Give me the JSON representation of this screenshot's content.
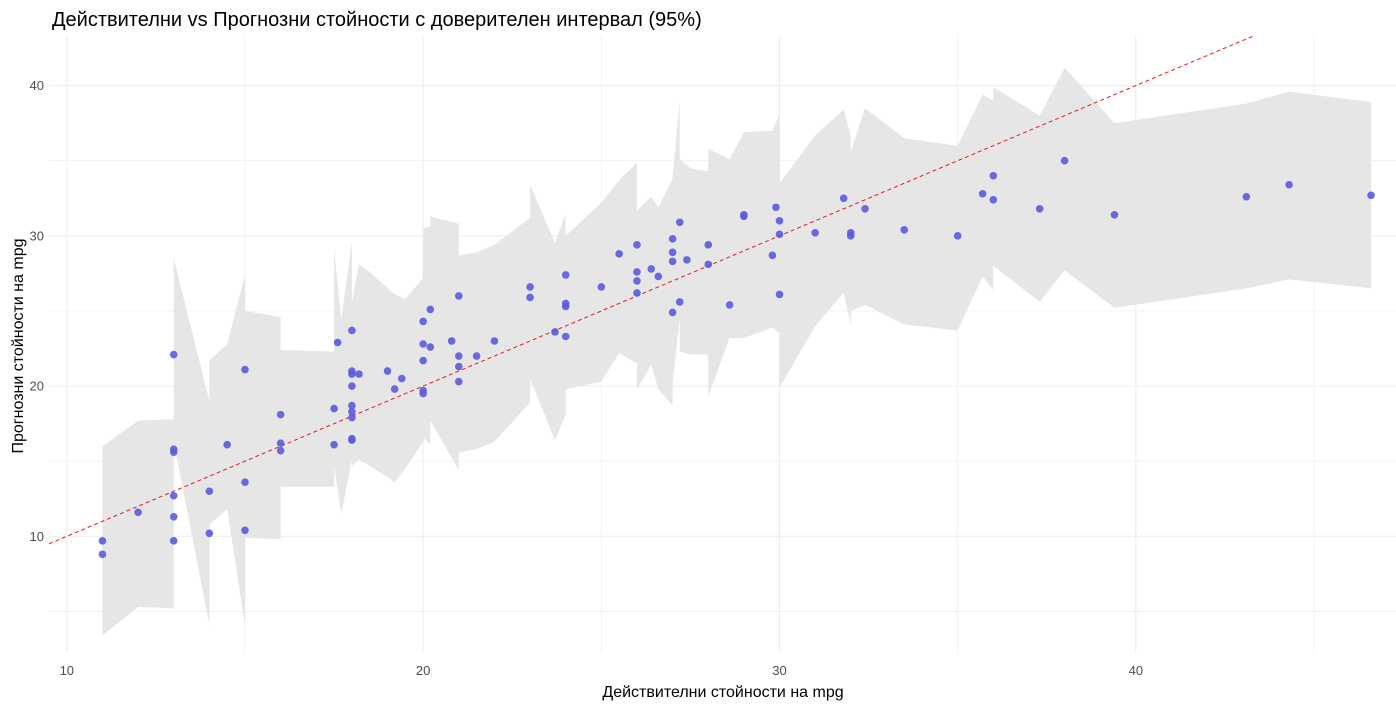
{
  "chart_data": {
    "type": "scatter",
    "title": "Действителни vs Прогнозни стойности с доверителен интервал (95%)",
    "xlabel": "Действителни стойности на mpg",
    "ylabel": "Прогнозни стойности на mpg",
    "xlim": [
      9.5,
      47.3
    ],
    "ylim": [
      2.3,
      43.3
    ],
    "xticks": [
      10,
      20,
      30,
      40
    ],
    "yticks": [
      10,
      20,
      30,
      40
    ],
    "xtick_labels": [
      "10",
      "20",
      "30",
      "40"
    ],
    "ytick_labels": [
      "10",
      "20",
      "30",
      "40"
    ],
    "grid": true,
    "legend": "none",
    "colors": {
      "points": "#5b5bdc",
      "reference_line": "#e31a1c",
      "ribbon": "#e6e6e6",
      "grid": "#ebebeb"
    },
    "reference_line": {
      "slope": 1,
      "intercept": 0,
      "style": "dashed"
    },
    "ribbon": {
      "x": [
        11,
        12,
        13,
        13,
        13,
        14,
        14,
        14.5,
        15,
        15,
        15,
        16,
        16,
        16,
        17.5,
        17.5,
        17.7,
        18,
        18,
        18,
        18,
        18.2,
        18.5,
        19.2,
        19.5,
        20,
        20,
        20,
        20.2,
        20.2,
        21,
        21,
        21,
        21.5,
        22,
        23,
        23,
        23.7,
        24,
        24,
        24,
        25,
        25.5,
        26,
        26,
        26,
        26.4,
        26.6,
        27,
        27,
        27,
        27.2,
        27.2,
        27.5,
        28,
        28,
        28.6,
        29,
        29.8,
        30,
        30,
        30,
        31,
        31.8,
        32,
        32,
        32.4,
        33.5,
        35,
        35.7,
        36,
        36,
        37.3,
        38,
        39.4,
        43.1,
        44.3,
        46.6
      ],
      "upper": [
        16,
        17.7,
        17.8,
        17,
        28.5,
        19,
        21.7,
        22.8,
        27.4,
        25.5,
        25,
        24.6,
        22.5,
        22.4,
        22.3,
        29.2,
        24.4,
        29.6,
        28.3,
        27.2,
        25.6,
        28.1,
        27.6,
        26.1,
        25.8,
        27.2,
        29.9,
        30.5,
        30.6,
        31.3,
        30.8,
        29.1,
        28.7,
        28.9,
        29.4,
        31.2,
        33.4,
        29.5,
        31.5,
        31.5,
        30,
        32.2,
        33.7,
        34.9,
        35.2,
        31.7,
        32.6,
        31.9,
        33.8,
        34.6,
        33.9,
        39,
        35.1,
        34.5,
        34.3,
        35.8,
        35.1,
        36.9,
        37,
        38.1,
        34.6,
        33.5,
        36.7,
        38.4,
        36.6,
        35.6,
        38.5,
        36.5,
        36,
        39.4,
        39,
        39.9,
        38,
        41.2,
        37.5,
        38.8,
        39.6,
        38.9
      ],
      "lower": [
        3.4,
        5.3,
        5.2,
        5.2,
        16.3,
        4.1,
        10.8,
        11.8,
        4.1,
        9.7,
        9.9,
        9.8,
        13,
        13.3,
        13.3,
        14.7,
        11.5,
        15.1,
        15.5,
        14.8,
        14.7,
        15.1,
        14.7,
        13.6,
        14.5,
        16.3,
        16.1,
        16.6,
        16.1,
        17.7,
        14.4,
        17.5,
        15.6,
        15.8,
        16.3,
        18.9,
        20.5,
        16.4,
        18.1,
        19.2,
        19.8,
        20.3,
        22.2,
        21.5,
        21.7,
        19.8,
        21.4,
        19.8,
        18.7,
        21.7,
        20.2,
        24.5,
        22.3,
        22.1,
        22.1,
        19.3,
        23.2,
        23.2,
        23.9,
        23.5,
        19.8,
        19.9,
        24,
        26.2,
        24.1,
        25,
        25.4,
        24.1,
        23.7,
        27.3,
        26.4,
        28,
        25.6,
        27.7,
        25.2,
        26.5,
        27.1,
        26.5
      ]
    },
    "x": [
      11,
      11,
      12,
      13,
      13,
      13,
      13,
      13,
      13,
      14,
      14,
      14.5,
      15,
      15,
      15,
      16,
      16,
      16,
      17.5,
      17.6,
      17.5,
      18,
      18,
      18,
      18,
      18,
      18,
      18,
      18,
      18.2,
      18,
      19,
      19.2,
      19.4,
      20,
      20,
      20,
      20,
      20,
      20.2,
      20.2,
      20.8,
      21,
      21,
      21,
      21,
      21.5,
      22,
      23,
      23,
      23.7,
      24,
      24,
      24,
      24,
      25,
      25.5,
      26,
      26,
      26,
      26,
      26.4,
      26.6,
      27,
      27,
      27,
      27,
      27.2,
      27.2,
      27.4,
      28,
      28,
      28.6,
      29,
      29,
      29.8,
      29.9,
      30,
      30,
      30,
      31,
      31.8,
      32,
      32,
      32.4,
      33.5,
      35,
      35.7,
      36,
      36,
      37.3,
      38,
      39.4,
      43.1,
      44.3,
      46.6
    ],
    "y": [
      9.7,
      8.8,
      11.6,
      22.1,
      15.8,
      15.6,
      12.7,
      11.3,
      9.7,
      13,
      10.2,
      16.1,
      21.1,
      13.6,
      10.4,
      18.1,
      16.2,
      15.7,
      18.5,
      22.9,
      16.1,
      23.7,
      21,
      20.8,
      20,
      18.7,
      18.3,
      17.9,
      16.5,
      20.8,
      16.4,
      21,
      19.8,
      20.5,
      24.3,
      22.8,
      21.7,
      19.7,
      19.5,
      22.6,
      25.1,
      23,
      26,
      22,
      21.3,
      20.3,
      22,
      23,
      26.6,
      25.9,
      23.6,
      27.4,
      25.5,
      25.3,
      23.3,
      26.6,
      28.8,
      29.4,
      27.6,
      27,
      26.2,
      27.8,
      27.3,
      29.8,
      28.9,
      28.3,
      24.9,
      30.9,
      25.6,
      28.4,
      29.4,
      28.1,
      25.4,
      31.4,
      31.3,
      28.7,
      31.9,
      31,
      30.1,
      26.1,
      30.2,
      32.5,
      30.2,
      30,
      31.8,
      30.4,
      30,
      32.8,
      34,
      32.4,
      31.8,
      35,
      31.4,
      32.6,
      33.4,
      32.7
    ]
  }
}
